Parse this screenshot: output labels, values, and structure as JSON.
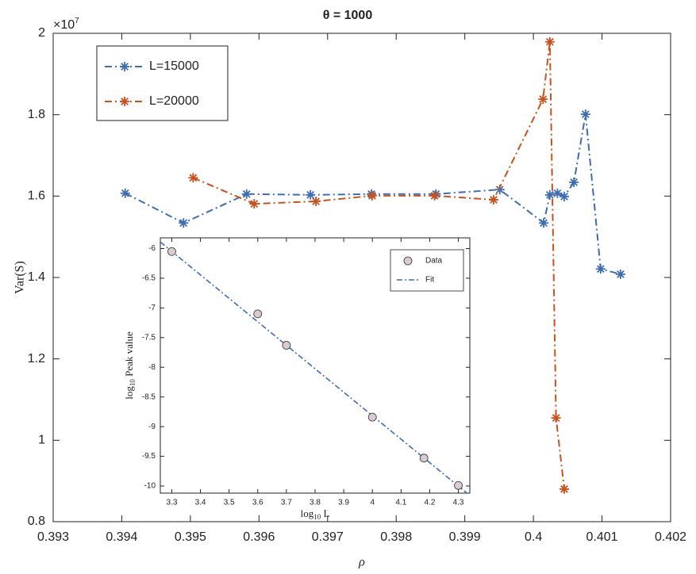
{
  "chart_data": [
    {
      "type": "line",
      "title": "θ = 1000",
      "xlabel": "ρ",
      "ylabel": "Var(S)",
      "y_multiplier": [
        "×10",
        "7"
      ],
      "xlim": [
        0.393,
        0.402
      ],
      "xticks": [
        0.393,
        0.394,
        0.395,
        0.396,
        0.397,
        0.398,
        0.399,
        0.4,
        0.401,
        0.402
      ],
      "ylim": [
        0.8,
        2
      ],
      "yticks": [
        0.8,
        1,
        1.2,
        1.4,
        1.6,
        1.8,
        2
      ],
      "legend": "upper left",
      "series": [
        {
          "name": "L=15000",
          "color": "#3d6db3",
          "x": [
            0.39405,
            0.3949,
            0.39582,
            0.39675,
            0.39764,
            0.39858,
            0.39951,
            0.40015,
            0.40024,
            0.40035,
            0.40045,
            0.40059,
            0.40076,
            0.40098,
            0.40127
          ],
          "values": [
            1.607,
            1.534,
            1.605,
            1.603,
            1.605,
            1.605,
            1.616,
            1.534,
            1.603,
            1.607,
            1.599,
            1.634,
            1.801,
            1.421,
            1.408
          ]
        },
        {
          "name": "L=20000",
          "color": "#c8521d",
          "x": [
            0.39504,
            0.39593,
            0.39683,
            0.39765,
            0.39856,
            0.39942,
            0.40014,
            0.40024,
            0.40033,
            0.40045
          ],
          "values": [
            1.645,
            1.581,
            1.587,
            1.601,
            1.601,
            1.591,
            1.838,
            1.979,
            1.055,
            0.88
          ]
        }
      ]
    },
    {
      "type": "scatter",
      "xlabel": [
        "log",
        "10",
        " L"
      ],
      "ylabel": [
        "log",
        "10",
        " Peak value"
      ],
      "xlim": [
        3.26,
        4.34
      ],
      "xticks": [
        3.3,
        3.4,
        3.5,
        3.6,
        3.7,
        3.8,
        3.9,
        4,
        4.1,
        4.2,
        4.3
      ],
      "ylim": [
        -10.12,
        -5.82
      ],
      "yticks": [
        -10,
        -9.5,
        -9,
        -8.5,
        -8,
        -7.5,
        -7,
        -6.5,
        -6
      ],
      "legend": "upper right",
      "series": [
        {
          "name": "Data",
          "type": "scatter",
          "color": "#d9cbd1",
          "x": [
            3.3,
            3.6,
            3.7,
            4,
            4.18,
            4.3
          ],
          "values": [
            -6.05,
            -7.1,
            -7.63,
            -8.84,
            -9.53,
            -9.99
          ]
        },
        {
          "name": "Fit",
          "type": "line",
          "color": "#3d6db3",
          "x": [
            3.26,
            4.34
          ],
          "values": [
            -5.89,
            -10.16
          ]
        }
      ]
    }
  ]
}
